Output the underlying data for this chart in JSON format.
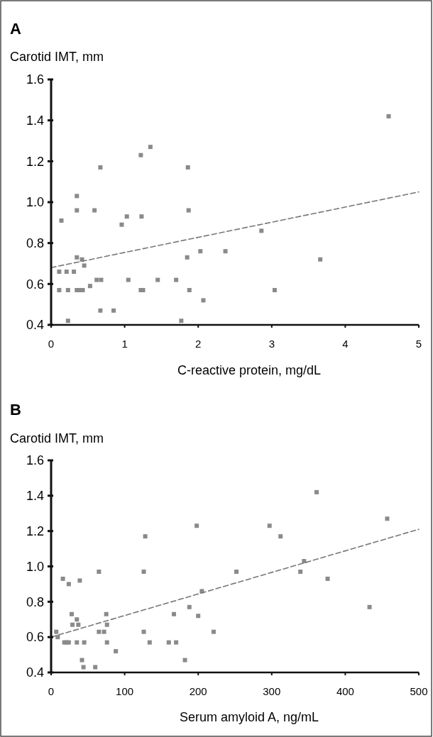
{
  "chart_data": [
    {
      "type": "scatter",
      "title": "A",
      "ylabel": "Carotid IMT, mm",
      "xlabel": "C-reactive protein, mg/dL",
      "xlim": [
        0,
        5
      ],
      "xticks": [
        0,
        1,
        2,
        3,
        4,
        5
      ],
      "ylim": [
        0.4,
        1.6
      ],
      "yticks": [
        0.4,
        0.6,
        0.8,
        {
          "value": 1,
          "label": "1.0"
        },
        1.2,
        1.4,
        1.6
      ],
      "series": [
        {
          "marker": "square",
          "color": "#8a8a8a",
          "x": [
            0.14,
            0.35,
            0.35,
            0.59,
            0.67,
            0.96,
            1.03,
            1.23,
            1.22,
            1.35,
            1.86,
            1.87,
            0.35,
            0.42,
            0.45,
            0.11,
            0.21,
            0.31,
            0.53,
            0.62,
            0.68,
            1.05,
            1.45,
            1.7,
            0.11,
            0.23,
            0.35,
            0.4,
            0.43,
            1.22,
            1.25,
            1.88,
            2.07,
            0.67,
            0.85,
            0.23,
            1.77,
            1.85,
            2.03,
            2.37,
            4.59,
            2.86,
            3.66,
            3.04
          ],
          "values": [
            0.91,
            1.03,
            0.96,
            0.96,
            1.17,
            0.89,
            0.93,
            0.93,
            1.23,
            1.27,
            1.17,
            0.96,
            0.73,
            0.72,
            0.69,
            0.66,
            0.66,
            0.66,
            0.59,
            0.62,
            0.62,
            0.62,
            0.62,
            0.62,
            0.57,
            0.57,
            0.57,
            0.57,
            0.57,
            0.57,
            0.57,
            0.57,
            0.52,
            0.47,
            0.47,
            0.42,
            0.42,
            0.73,
            0.76,
            0.76,
            1.42,
            0.86,
            0.72,
            0.57
          ]
        },
        {
          "type": "line",
          "color": "#777777",
          "line_style": "dashed",
          "x": [
            0,
            5
          ],
          "values": [
            0.68,
            1.05
          ]
        }
      ]
    },
    {
      "type": "scatter",
      "title": "B",
      "ylabel": "Carotid IMT, mm",
      "xlabel": "Serum amyloid A, ng/mL",
      "xlim": [
        0,
        500
      ],
      "xticks": [
        0,
        100,
        200,
        300,
        400,
        500
      ],
      "ylim": [
        0.4,
        1.6
      ],
      "yticks": [
        0.4,
        0.6,
        0.8,
        {
          "value": 1,
          "label": "1.0"
        },
        1.2,
        1.4,
        1.6
      ],
      "series": [
        {
          "marker": "square",
          "color": "#8a8a8a",
          "x": [
            7,
            9,
            16,
            24,
            39,
            28,
            35,
            29,
            37,
            18,
            21,
            24,
            35,
            45,
            65,
            65,
            72,
            75,
            76,
            76,
            88,
            42,
            44,
            60,
            126,
            128,
            126,
            134,
            160,
            170,
            167,
            182,
            188,
            200,
            205,
            198,
            221,
            361,
            297,
            312,
            457,
            252,
            339,
            344,
            376,
            433
          ],
          "values": [
            0.63,
            0.6,
            0.93,
            0.9,
            0.92,
            0.73,
            0.7,
            0.67,
            0.67,
            0.57,
            0.57,
            0.57,
            0.57,
            0.57,
            0.97,
            0.63,
            0.63,
            0.73,
            0.67,
            0.57,
            0.52,
            0.47,
            0.43,
            0.43,
            0.97,
            1.17,
            0.63,
            0.57,
            0.57,
            0.57,
            0.73,
            0.47,
            0.77,
            0.72,
            0.86,
            1.23,
            0.63,
            1.42,
            1.23,
            1.17,
            1.27,
            0.97,
            0.97,
            1.03,
            0.93,
            0.77
          ]
        },
        {
          "type": "line",
          "color": "#777777",
          "line_style": "dashed",
          "x": [
            0,
            500
          ],
          "values": [
            0.6,
            1.21
          ]
        }
      ]
    }
  ]
}
